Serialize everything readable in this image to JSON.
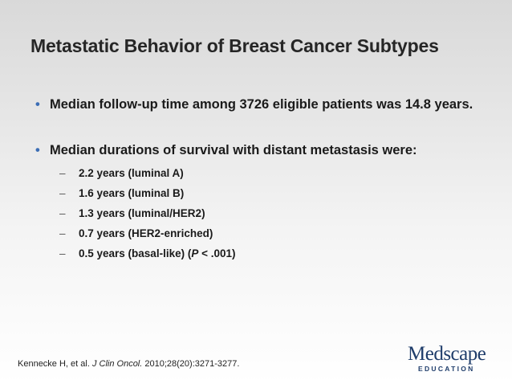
{
  "slide": {
    "title": "Metastatic Behavior of Breast Cancer Subtypes",
    "bullets": [
      {
        "marker": "•",
        "text": "Median follow-up time among 3726 eligible patients was 14.8 years."
      },
      {
        "marker": "•",
        "text": "Median durations of survival with distant metastasis were:",
        "subitems": [
          {
            "marker": "–",
            "text": "2.2 years (luminal A)"
          },
          {
            "marker": "–",
            "text": "1.6 years (luminal B)"
          },
          {
            "marker": "–",
            "text": "1.3 years (luminal/HER2)"
          },
          {
            "marker": "–",
            "text": "0.7 years (HER2-enriched)"
          },
          {
            "marker": "–",
            "text_before_p": "0.5 years (basal-like) (",
            "p_italic": "P",
            "text_after_p": " < .001)"
          }
        ]
      }
    ],
    "citation": {
      "authors": "Kennecke H, et al.",
      "journal": "J Clin Oncol.",
      "details": "2010;28(20):3271-3277."
    },
    "logo": {
      "wordmark": "Medscape",
      "subtitle": "EDUCATION",
      "color": "#1f3d6b"
    },
    "colors": {
      "bullet_dot": "#3b6db5",
      "title": "#262626"
    }
  }
}
